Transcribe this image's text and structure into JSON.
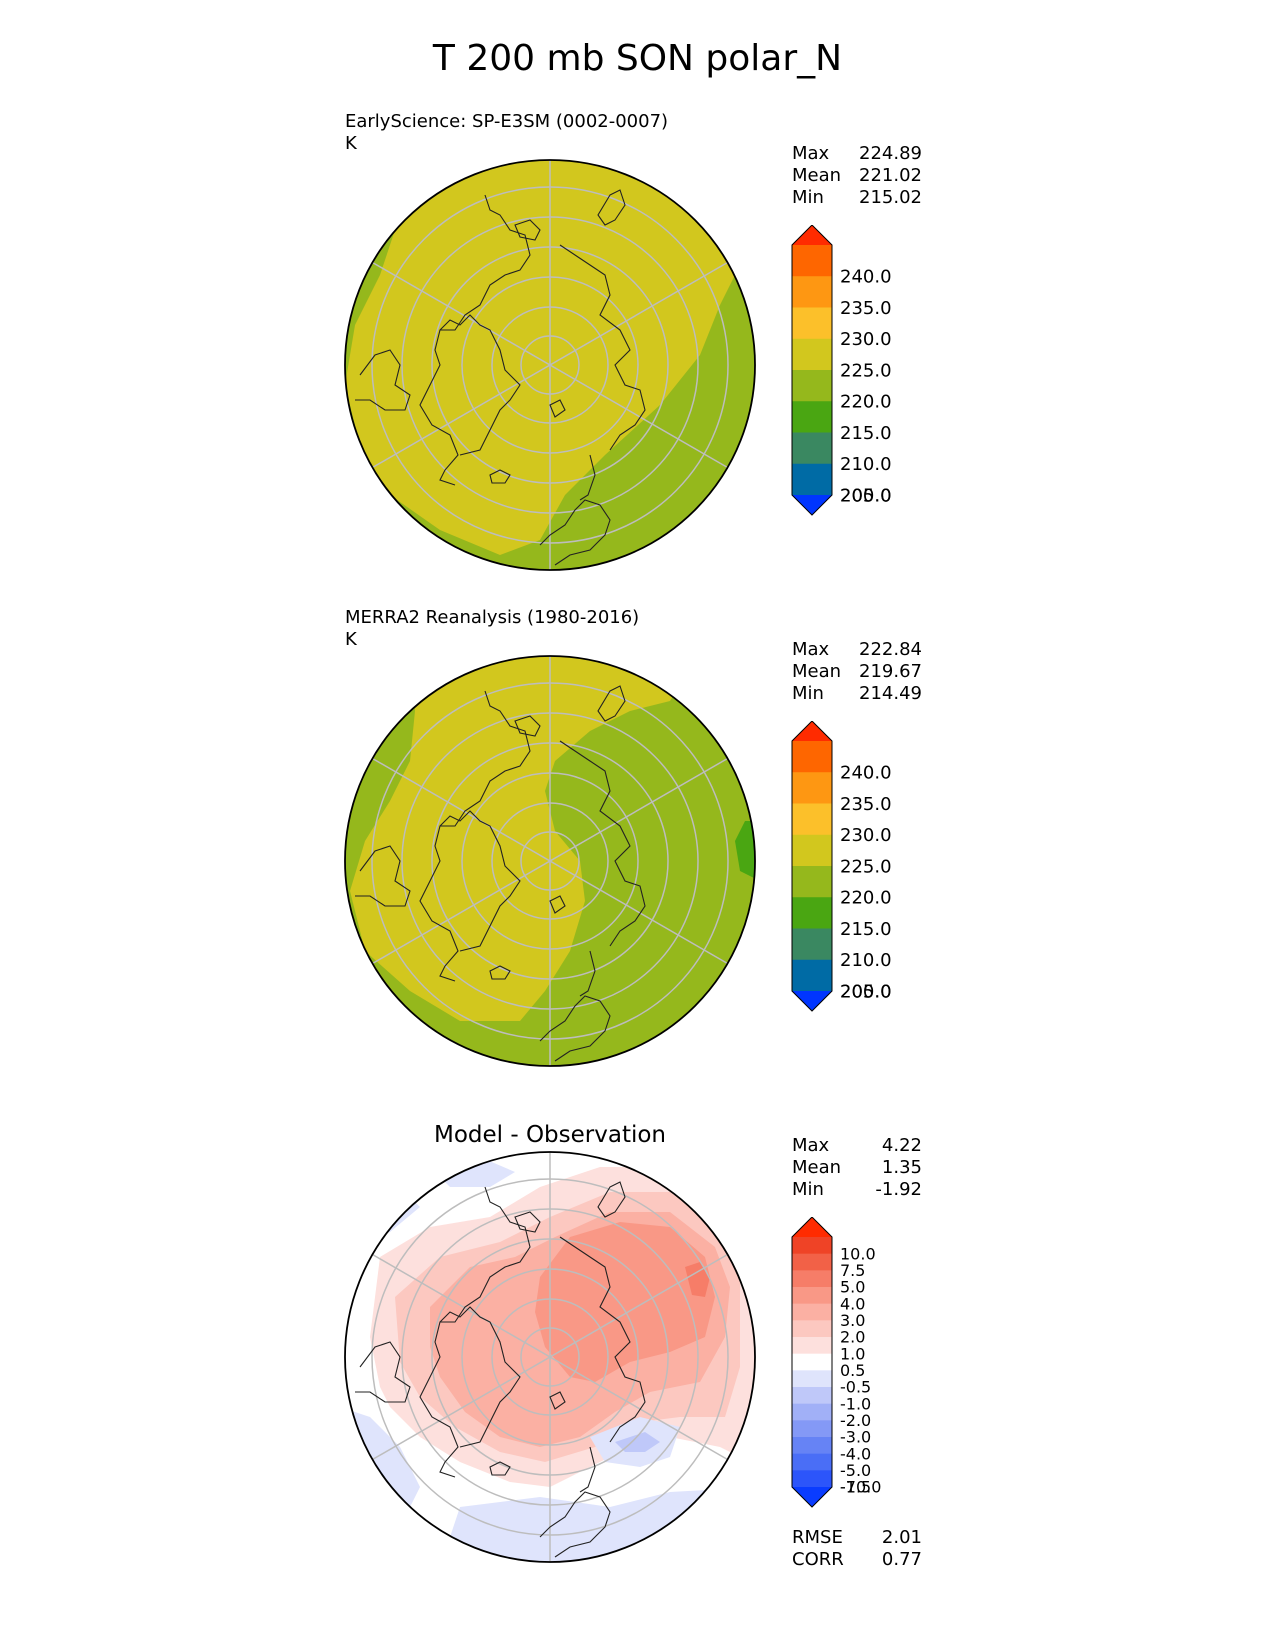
{
  "title": "T 200 mb SON polar_N",
  "panels": [
    {
      "name": "EarlyScience: SP-E3SM (0002-0007)",
      "units": "K",
      "stats": [
        {
          "label": "Max",
          "value": "224.89"
        },
        {
          "label": "Mean",
          "value": "221.02"
        },
        {
          "label": "Min",
          "value": "215.02"
        }
      ],
      "colorbar": {
        "labels": [
          "240.0",
          "235.0",
          "230.0",
          "225.0",
          "220.0",
          "215.0",
          "210.0",
          "205.0",
          "200.0"
        ],
        "colors": [
          "#0035ff",
          "#006ba5",
          "#3a8861",
          "#4aa612",
          "#95b81c",
          "#d2c71e",
          "#fcc02a",
          "#fe9712",
          "#fe6600",
          "#ff2b00"
        ]
      }
    },
    {
      "name": "MERRA2 Reanalysis (1980-2016)",
      "units": "K",
      "stats": [
        {
          "label": "Max",
          "value": "222.84"
        },
        {
          "label": "Mean",
          "value": "219.67"
        },
        {
          "label": "Min",
          "value": "214.49"
        }
      ],
      "colorbar": {
        "labels": [
          "240.0",
          "235.0",
          "230.0",
          "225.0",
          "220.0",
          "215.0",
          "210.0",
          "205.0",
          "200.0"
        ],
        "colors": [
          "#0035ff",
          "#006ba5",
          "#3a8861",
          "#4aa612",
          "#95b81c",
          "#d2c71e",
          "#fcc02a",
          "#fe9712",
          "#fe6600",
          "#ff2b00"
        ]
      }
    },
    {
      "name": "Model - Observation",
      "stats": [
        {
          "label": "Max",
          "value": "4.22"
        },
        {
          "label": "Mean",
          "value": "1.35"
        },
        {
          "label": "Min",
          "value": "-1.92"
        }
      ],
      "extra_stats": [
        {
          "label": "RMSE",
          "value": "2.01"
        },
        {
          "label": "CORR",
          "value": "0.77"
        }
      ],
      "colorbar": {
        "labels": [
          "10.0",
          "7.5",
          "5.0",
          "4.0",
          "3.0",
          "2.0",
          "1.0",
          "0.5",
          "-0.5",
          "-1.0",
          "-2.0",
          "-3.0",
          "-4.0",
          "-5.0",
          "-7.5",
          "-10.0"
        ],
        "colors": [
          "#0a3cff",
          "#2c55fa",
          "#4a6ef6",
          "#6683f5",
          "#8499f6",
          "#a1b0f7",
          "#bfc8f9",
          "#dfe4fc",
          "#ffffff",
          "#fde0dd",
          "#fcc8c0",
          "#fbb0a3",
          "#f99886",
          "#f67d68",
          "#f26147",
          "#ef4326",
          "#ff2b00"
        ]
      }
    }
  ]
}
